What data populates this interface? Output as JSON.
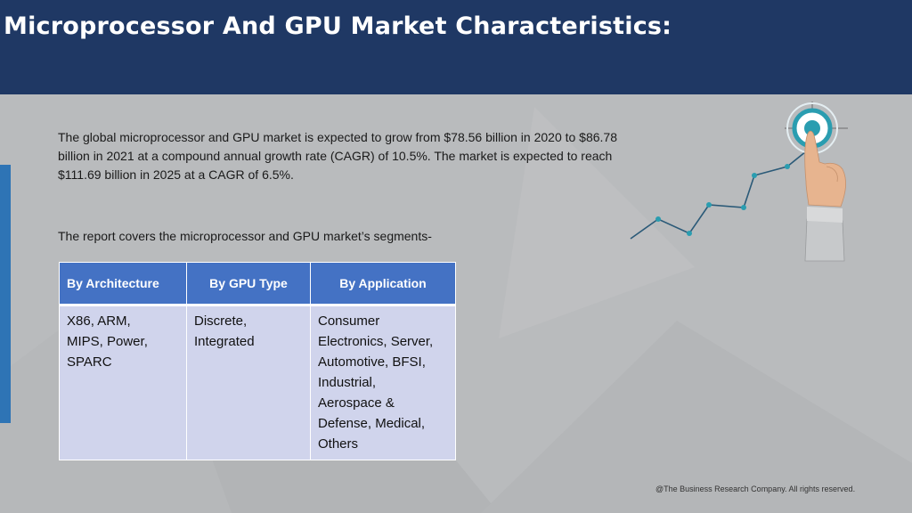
{
  "header": {
    "title": "Microprocessor And GPU Market Characteristics:"
  },
  "intro": {
    "paragraph1": "The global microprocessor and GPU market is expected to grow from $78.56 billion in 2020 to $86.78 billion in 2021 at a compound annual growth rate (CAGR) of 10.5%. The market is expected to reach $111.69 billion in 2025 at a CAGR of 6.5%.",
    "paragraph2": "The report covers the microprocessor and GPU market’s segments-"
  },
  "segments_table": {
    "headers": [
      "By Architecture",
      "By GPU Type",
      "By Application"
    ],
    "cells": {
      "architecture": [
        "X86, ARM,",
        "MIPS, Power,",
        "SPARC"
      ],
      "gpu_type": [
        "Discrete,",
        "Integrated"
      ],
      "application": [
        "Consumer",
        "Electronics, Server,",
        "Automotive, BFSI,",
        "Industrial,",
        "Aerospace &",
        "Defense, Medical,",
        "Others"
      ]
    }
  },
  "footer": {
    "copyright": "@The Business Research Company. All rights reserved."
  },
  "colors": {
    "header_bg": "#1f3864",
    "accent": "#2e74b5",
    "table_header": "#4472c4",
    "table_body": "#d0d4ec",
    "target_ring": "#2a9db0"
  },
  "icons": [
    "target-icon",
    "growth-line-icon",
    "pointing-hand-icon"
  ]
}
